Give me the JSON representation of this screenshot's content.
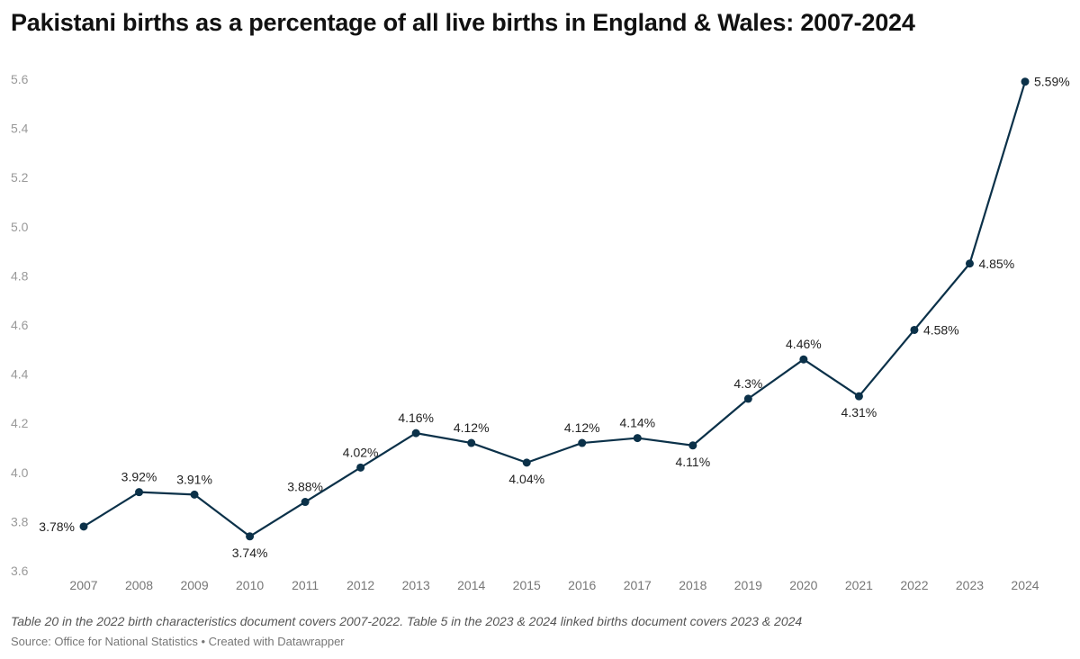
{
  "chart_data": {
    "type": "line",
    "title": "Pakistani births as a percentage of all live births in England & Wales: 2007-2024",
    "xlabel": "",
    "ylabel": "",
    "x": [
      2007,
      2008,
      2009,
      2010,
      2011,
      2012,
      2013,
      2014,
      2015,
      2016,
      2017,
      2018,
      2019,
      2020,
      2021,
      2022,
      2023,
      2024
    ],
    "series": [
      {
        "values": [
          3.78,
          3.92,
          3.91,
          3.74,
          3.88,
          4.02,
          4.16,
          4.12,
          4.04,
          4.12,
          4.14,
          4.11,
          4.3,
          4.46,
          4.31,
          4.58,
          4.85,
          5.59
        ],
        "labels": [
          "3.78%",
          "3.92%",
          "3.91%",
          "3.74%",
          "3.88%",
          "4.02%",
          "4.16%",
          "4.12%",
          "4.04%",
          "4.12%",
          "4.14%",
          "4.11%",
          "4.3%",
          "4.46%",
          "4.31%",
          "4.58%",
          "4.85%",
          "5.59%"
        ],
        "color": "#0b3149"
      }
    ],
    "ylim": [
      3.6,
      5.6
    ],
    "yticks": [
      "3.6",
      "3.8",
      "4.0",
      "4.2",
      "4.4",
      "4.6",
      "4.8",
      "5.0",
      "5.2",
      "5.4",
      "5.6"
    ],
    "grid": false,
    "legend": "none"
  },
  "footer": {
    "note": "Table 20 in the 2022 birth characteristics document covers 2007-2022. Table 5 in the 2023 & 2024 linked births document covers 2023 & 2024",
    "source": "Source: Office for National Statistics • Created with Datawrapper"
  }
}
